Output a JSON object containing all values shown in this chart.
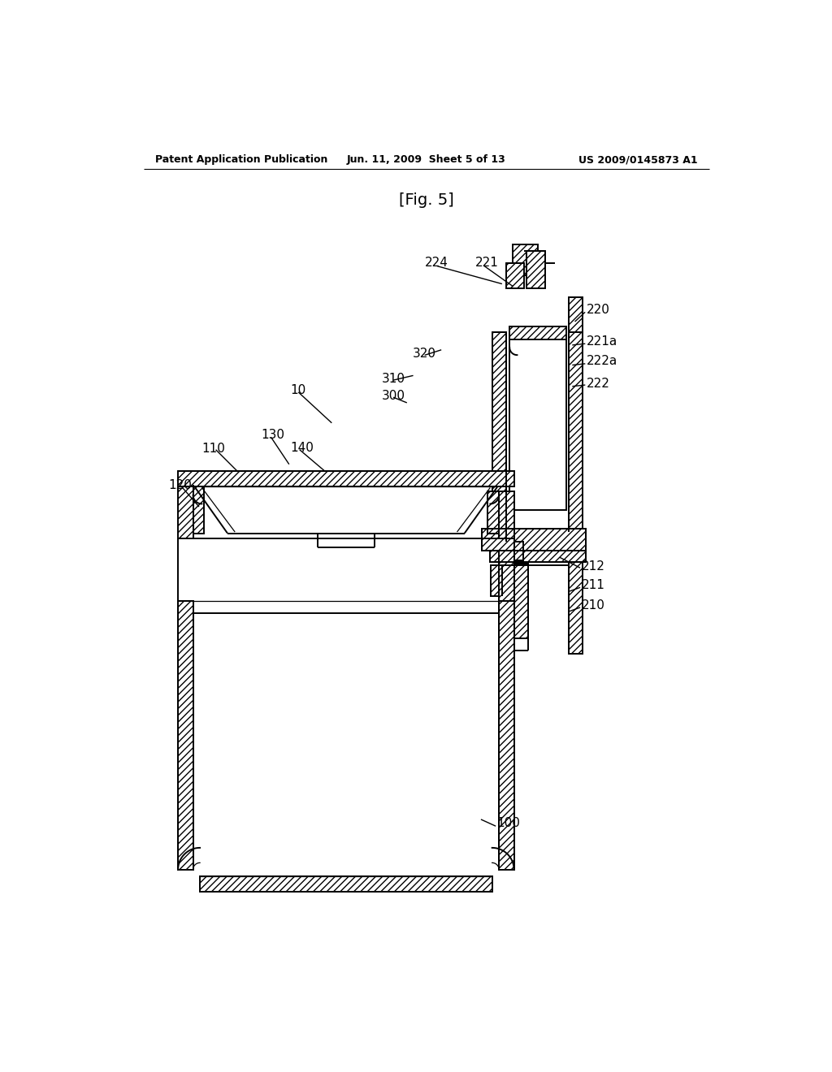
{
  "bg_color": "#ffffff",
  "header_left": "Patent Application Publication",
  "header_center": "Jun. 11, 2009  Sheet 5 of 13",
  "header_right": "US 2009/0145873 A1",
  "fig_title": "[Fig. 5]"
}
